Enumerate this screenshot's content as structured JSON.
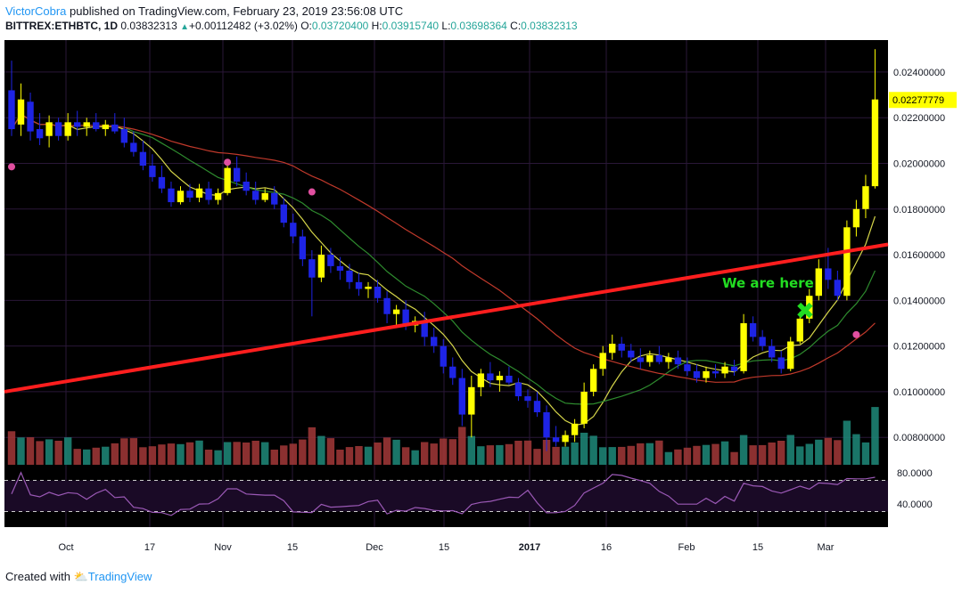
{
  "header": {
    "author": "VictorCobra",
    "published_text": "published on TradingView.com, February 23, 2019 23:56:08 UTC",
    "symbol": "BITTREX:ETHBTC, 1D",
    "last": "0.03832313",
    "change": "+0.00112482 (+3.02%)",
    "open_label": "O:",
    "open": "0.03720400",
    "high_label": "H:",
    "high": "0.03915740",
    "low_label": "L:",
    "low": "0.03698364",
    "close_label": "C:",
    "close": "0.03832313",
    "up_glyph": "▲"
  },
  "footer": {
    "created_with": "Created with",
    "brand": "TradingView"
  },
  "colors": {
    "background": "#000000",
    "bull": "#ffff00",
    "bear": "#1e24e6",
    "vol_up": "#1f8a7a",
    "vol_down": "#a33838",
    "ma_fast": "#d6d64a",
    "ma_mid": "#2e8b2e",
    "ma_slow": "#c0392b",
    "trendline": "#ff1e1e",
    "rsi": "#9b59b6",
    "rsi_band": "#1a0a26",
    "marker": "#e04fa0",
    "annotation": "#22dd22",
    "price_label_bg": "#ffff00"
  },
  "chart_data": {
    "type": "candlestick",
    "price_axis": {
      "min": 0.0068,
      "max": 0.0254,
      "ticks": [
        "0.02400000",
        "0.02200000",
        "0.02000000",
        "0.01800000",
        "0.01600000",
        "0.01400000",
        "0.01200000",
        "0.01000000",
        "0.00800000"
      ]
    },
    "time_axis": [
      "Oct",
      "17",
      "Nov",
      "15",
      "Dec",
      "15",
      "2017",
      "16",
      "Feb",
      "15",
      "Mar"
    ],
    "last_price_label": "0.02277779",
    "annotation": "We are here",
    "annotation_marker": "✖",
    "candles": [
      [
        0.0232,
        0.0245,
        0.0212,
        0.0215
      ],
      [
        0.0217,
        0.0235,
        0.0212,
        0.0228
      ],
      [
        0.0227,
        0.0231,
        0.021,
        0.0214
      ],
      [
        0.0215,
        0.0222,
        0.0208,
        0.0211
      ],
      [
        0.0212,
        0.0221,
        0.0207,
        0.0218
      ],
      [
        0.0218,
        0.022,
        0.021,
        0.0212
      ],
      [
        0.0212,
        0.0222,
        0.021,
        0.0218
      ],
      [
        0.0218,
        0.0223,
        0.0212,
        0.0216
      ],
      [
        0.0216,
        0.022,
        0.0212,
        0.0218
      ],
      [
        0.0218,
        0.0222,
        0.0214,
        0.0215
      ],
      [
        0.0215,
        0.0219,
        0.0212,
        0.0217
      ],
      [
        0.0217,
        0.0222,
        0.0213,
        0.0214
      ],
      [
        0.0215,
        0.022,
        0.0207,
        0.0209
      ],
      [
        0.0209,
        0.0214,
        0.0203,
        0.0205
      ],
      [
        0.0205,
        0.021,
        0.0197,
        0.0199
      ],
      [
        0.0199,
        0.0204,
        0.0192,
        0.0194
      ],
      [
        0.0194,
        0.0199,
        0.0187,
        0.0189
      ],
      [
        0.0189,
        0.0192,
        0.0181,
        0.0183
      ],
      [
        0.0183,
        0.019,
        0.0182,
        0.0188
      ],
      [
        0.0188,
        0.0191,
        0.0183,
        0.0185
      ],
      [
        0.0185,
        0.0191,
        0.0183,
        0.0189
      ],
      [
        0.0189,
        0.0192,
        0.0182,
        0.0184
      ],
      [
        0.0184,
        0.0189,
        0.0182,
        0.0187
      ],
      [
        0.0187,
        0.0201,
        0.0186,
        0.0198
      ],
      [
        0.0198,
        0.0203,
        0.019,
        0.0192
      ],
      [
        0.0192,
        0.0196,
        0.0186,
        0.0188
      ],
      [
        0.0188,
        0.0192,
        0.0182,
        0.0184
      ],
      [
        0.0184,
        0.0189,
        0.0183,
        0.0187
      ],
      [
        0.0187,
        0.019,
        0.018,
        0.0182
      ],
      [
        0.0182,
        0.0185,
        0.0172,
        0.0174
      ],
      [
        0.0174,
        0.0178,
        0.0165,
        0.0168
      ],
      [
        0.0168,
        0.0171,
        0.0155,
        0.0158
      ],
      [
        0.0158,
        0.0162,
        0.0133,
        0.015
      ],
      [
        0.015,
        0.0164,
        0.0148,
        0.016
      ],
      [
        0.016,
        0.0163,
        0.0152,
        0.0155
      ],
      [
        0.0155,
        0.0159,
        0.0149,
        0.0153
      ],
      [
        0.0153,
        0.0156,
        0.0145,
        0.0148
      ],
      [
        0.0148,
        0.0152,
        0.0142,
        0.0145
      ],
      [
        0.0145,
        0.0148,
        0.0141,
        0.0146
      ],
      [
        0.0146,
        0.0149,
        0.0139,
        0.0141
      ],
      [
        0.0141,
        0.0144,
        0.013,
        0.0134
      ],
      [
        0.0134,
        0.0138,
        0.0129,
        0.0136
      ],
      [
        0.0136,
        0.014,
        0.0127,
        0.0129
      ],
      [
        0.0129,
        0.0133,
        0.0126,
        0.0131
      ],
      [
        0.0131,
        0.0135,
        0.012,
        0.0124
      ],
      [
        0.0124,
        0.0128,
        0.0117,
        0.012
      ],
      [
        0.012,
        0.0123,
        0.0108,
        0.0111
      ],
      [
        0.0111,
        0.0115,
        0.0103,
        0.0106
      ],
      [
        0.0106,
        0.011,
        0.0085,
        0.009
      ],
      [
        0.009,
        0.0107,
        0.008,
        0.0102
      ],
      [
        0.0102,
        0.011,
        0.0098,
        0.0108
      ],
      [
        0.0108,
        0.0113,
        0.0102,
        0.0105
      ],
      [
        0.0105,
        0.0109,
        0.01,
        0.0107
      ],
      [
        0.0107,
        0.0111,
        0.0103,
        0.0104
      ],
      [
        0.0104,
        0.0106,
        0.0096,
        0.0098
      ],
      [
        0.0098,
        0.0101,
        0.0093,
        0.0096
      ],
      [
        0.0096,
        0.01,
        0.0089,
        0.0091
      ],
      [
        0.0091,
        0.0094,
        0.0074,
        0.008
      ],
      [
        0.008,
        0.0085,
        0.0076,
        0.0078
      ],
      [
        0.0078,
        0.0083,
        0.0076,
        0.0081
      ],
      [
        0.0081,
        0.0088,
        0.0078,
        0.0086
      ],
      [
        0.0086,
        0.0104,
        0.0084,
        0.01
      ],
      [
        0.01,
        0.0112,
        0.0098,
        0.011
      ],
      [
        0.011,
        0.012,
        0.0107,
        0.0117
      ],
      [
        0.0117,
        0.0125,
        0.0114,
        0.0121
      ],
      [
        0.0121,
        0.0124,
        0.0115,
        0.0118
      ],
      [
        0.0118,
        0.0121,
        0.0113,
        0.0115
      ],
      [
        0.0115,
        0.0119,
        0.011,
        0.0113
      ],
      [
        0.0113,
        0.0118,
        0.0111,
        0.0116
      ],
      [
        0.0116,
        0.012,
        0.0112,
        0.0113
      ],
      [
        0.0113,
        0.0117,
        0.011,
        0.0115
      ],
      [
        0.0115,
        0.0118,
        0.011,
        0.0112
      ],
      [
        0.0112,
        0.0115,
        0.0107,
        0.0109
      ],
      [
        0.0109,
        0.0112,
        0.0104,
        0.0106
      ],
      [
        0.0106,
        0.0111,
        0.0104,
        0.0109
      ],
      [
        0.0109,
        0.0112,
        0.0106,
        0.0108
      ],
      [
        0.0108,
        0.0113,
        0.0106,
        0.0111
      ],
      [
        0.0111,
        0.0114,
        0.0107,
        0.0109
      ],
      [
        0.0109,
        0.0134,
        0.0108,
        0.013
      ],
      [
        0.013,
        0.0133,
        0.0122,
        0.0124
      ],
      [
        0.0124,
        0.0127,
        0.0118,
        0.012
      ],
      [
        0.012,
        0.0123,
        0.0113,
        0.0115
      ],
      [
        0.0115,
        0.0118,
        0.0108,
        0.011
      ],
      [
        0.011,
        0.0124,
        0.0109,
        0.0122
      ],
      [
        0.0122,
        0.0135,
        0.0121,
        0.0132
      ],
      [
        0.0132,
        0.0145,
        0.013,
        0.0142
      ],
      [
        0.0142,
        0.0158,
        0.014,
        0.0154
      ],
      [
        0.0154,
        0.0163,
        0.0145,
        0.0149
      ],
      [
        0.0149,
        0.0153,
        0.014,
        0.0142
      ],
      [
        0.0142,
        0.0175,
        0.014,
        0.0172
      ],
      [
        0.0172,
        0.0184,
        0.0168,
        0.018
      ],
      [
        0.018,
        0.0195,
        0.0176,
        0.019
      ],
      [
        0.019,
        0.025,
        0.0189,
        0.0228
      ]
    ],
    "volume_up_pattern": "green on up days, red on down days",
    "rsi": {
      "levels": [
        "80.0000",
        "40.0000"
      ],
      "upper_band": 70,
      "lower_band": 30,
      "min": 10,
      "max": 90
    },
    "moving_averages": [
      "fast (yellow)",
      "mid (green)",
      "slow (red)"
    ]
  }
}
